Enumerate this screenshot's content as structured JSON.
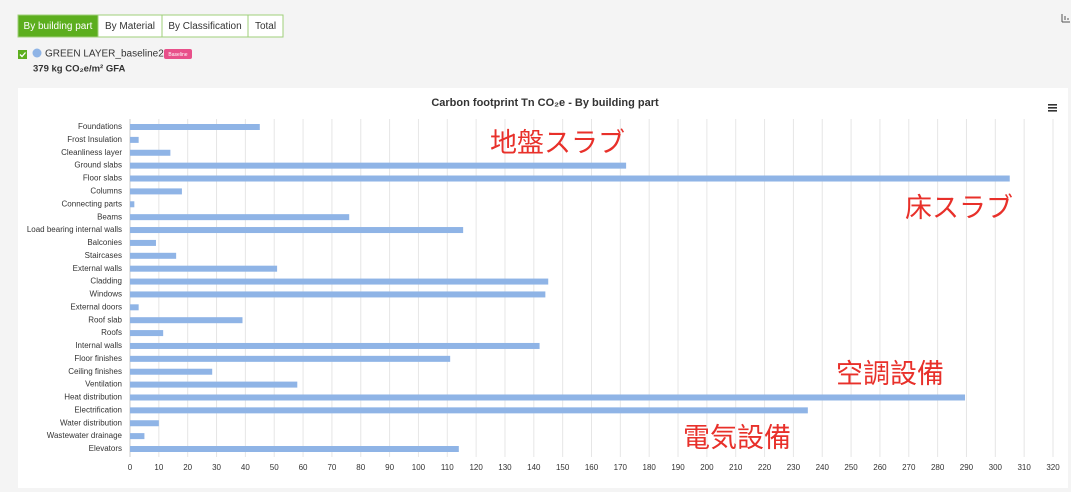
{
  "tabs": [
    "By building part",
    "By Material",
    "By Classification",
    "Total"
  ],
  "legend": {
    "name": "GREEN LAYER_baseline2",
    "badge": "Baseline",
    "summary": "379 kg CO₂e/m² GFA"
  },
  "chart_data": {
    "type": "bar",
    "orientation": "horizontal",
    "title": "Carbon footprint Tn CO₂e - By building part",
    "categories": [
      "Foundations",
      "Frost Insulation",
      "Cleanliness layer",
      "Ground slabs",
      "Floor slabs",
      "Columns",
      "Connecting parts",
      "Beams",
      "Load bearing internal walls",
      "Balconies",
      "Staircases",
      "External walls",
      "Cladding",
      "Windows",
      "External doors",
      "Roof slab",
      "Roofs",
      "Internal walls",
      "Floor finishes",
      "Ceiling finishes",
      "Ventilation",
      "Heat distribution",
      "Electrification",
      "Water distribution",
      "Wastewater drainage",
      "Elevators"
    ],
    "values": [
      45,
      3,
      14,
      172,
      305,
      18,
      1.5,
      76,
      115.5,
      9,
      16,
      51,
      145,
      144,
      3,
      39,
      11.5,
      142,
      111,
      28.5,
      58,
      289.5,
      235,
      10,
      5,
      114
    ],
    "color": "#8fb4e6",
    "xlim": [
      0,
      320
    ],
    "xticks": [
      0,
      10,
      20,
      30,
      40,
      50,
      60,
      70,
      80,
      90,
      100,
      110,
      120,
      130,
      140,
      150,
      160,
      170,
      180,
      190,
      200,
      210,
      220,
      230,
      240,
      250,
      260,
      270,
      280,
      290,
      300,
      310,
      320
    ],
    "grid": true,
    "annotations": [
      "地盤スラブ",
      "床スラブ",
      "空調設備",
      "電気設備"
    ]
  }
}
